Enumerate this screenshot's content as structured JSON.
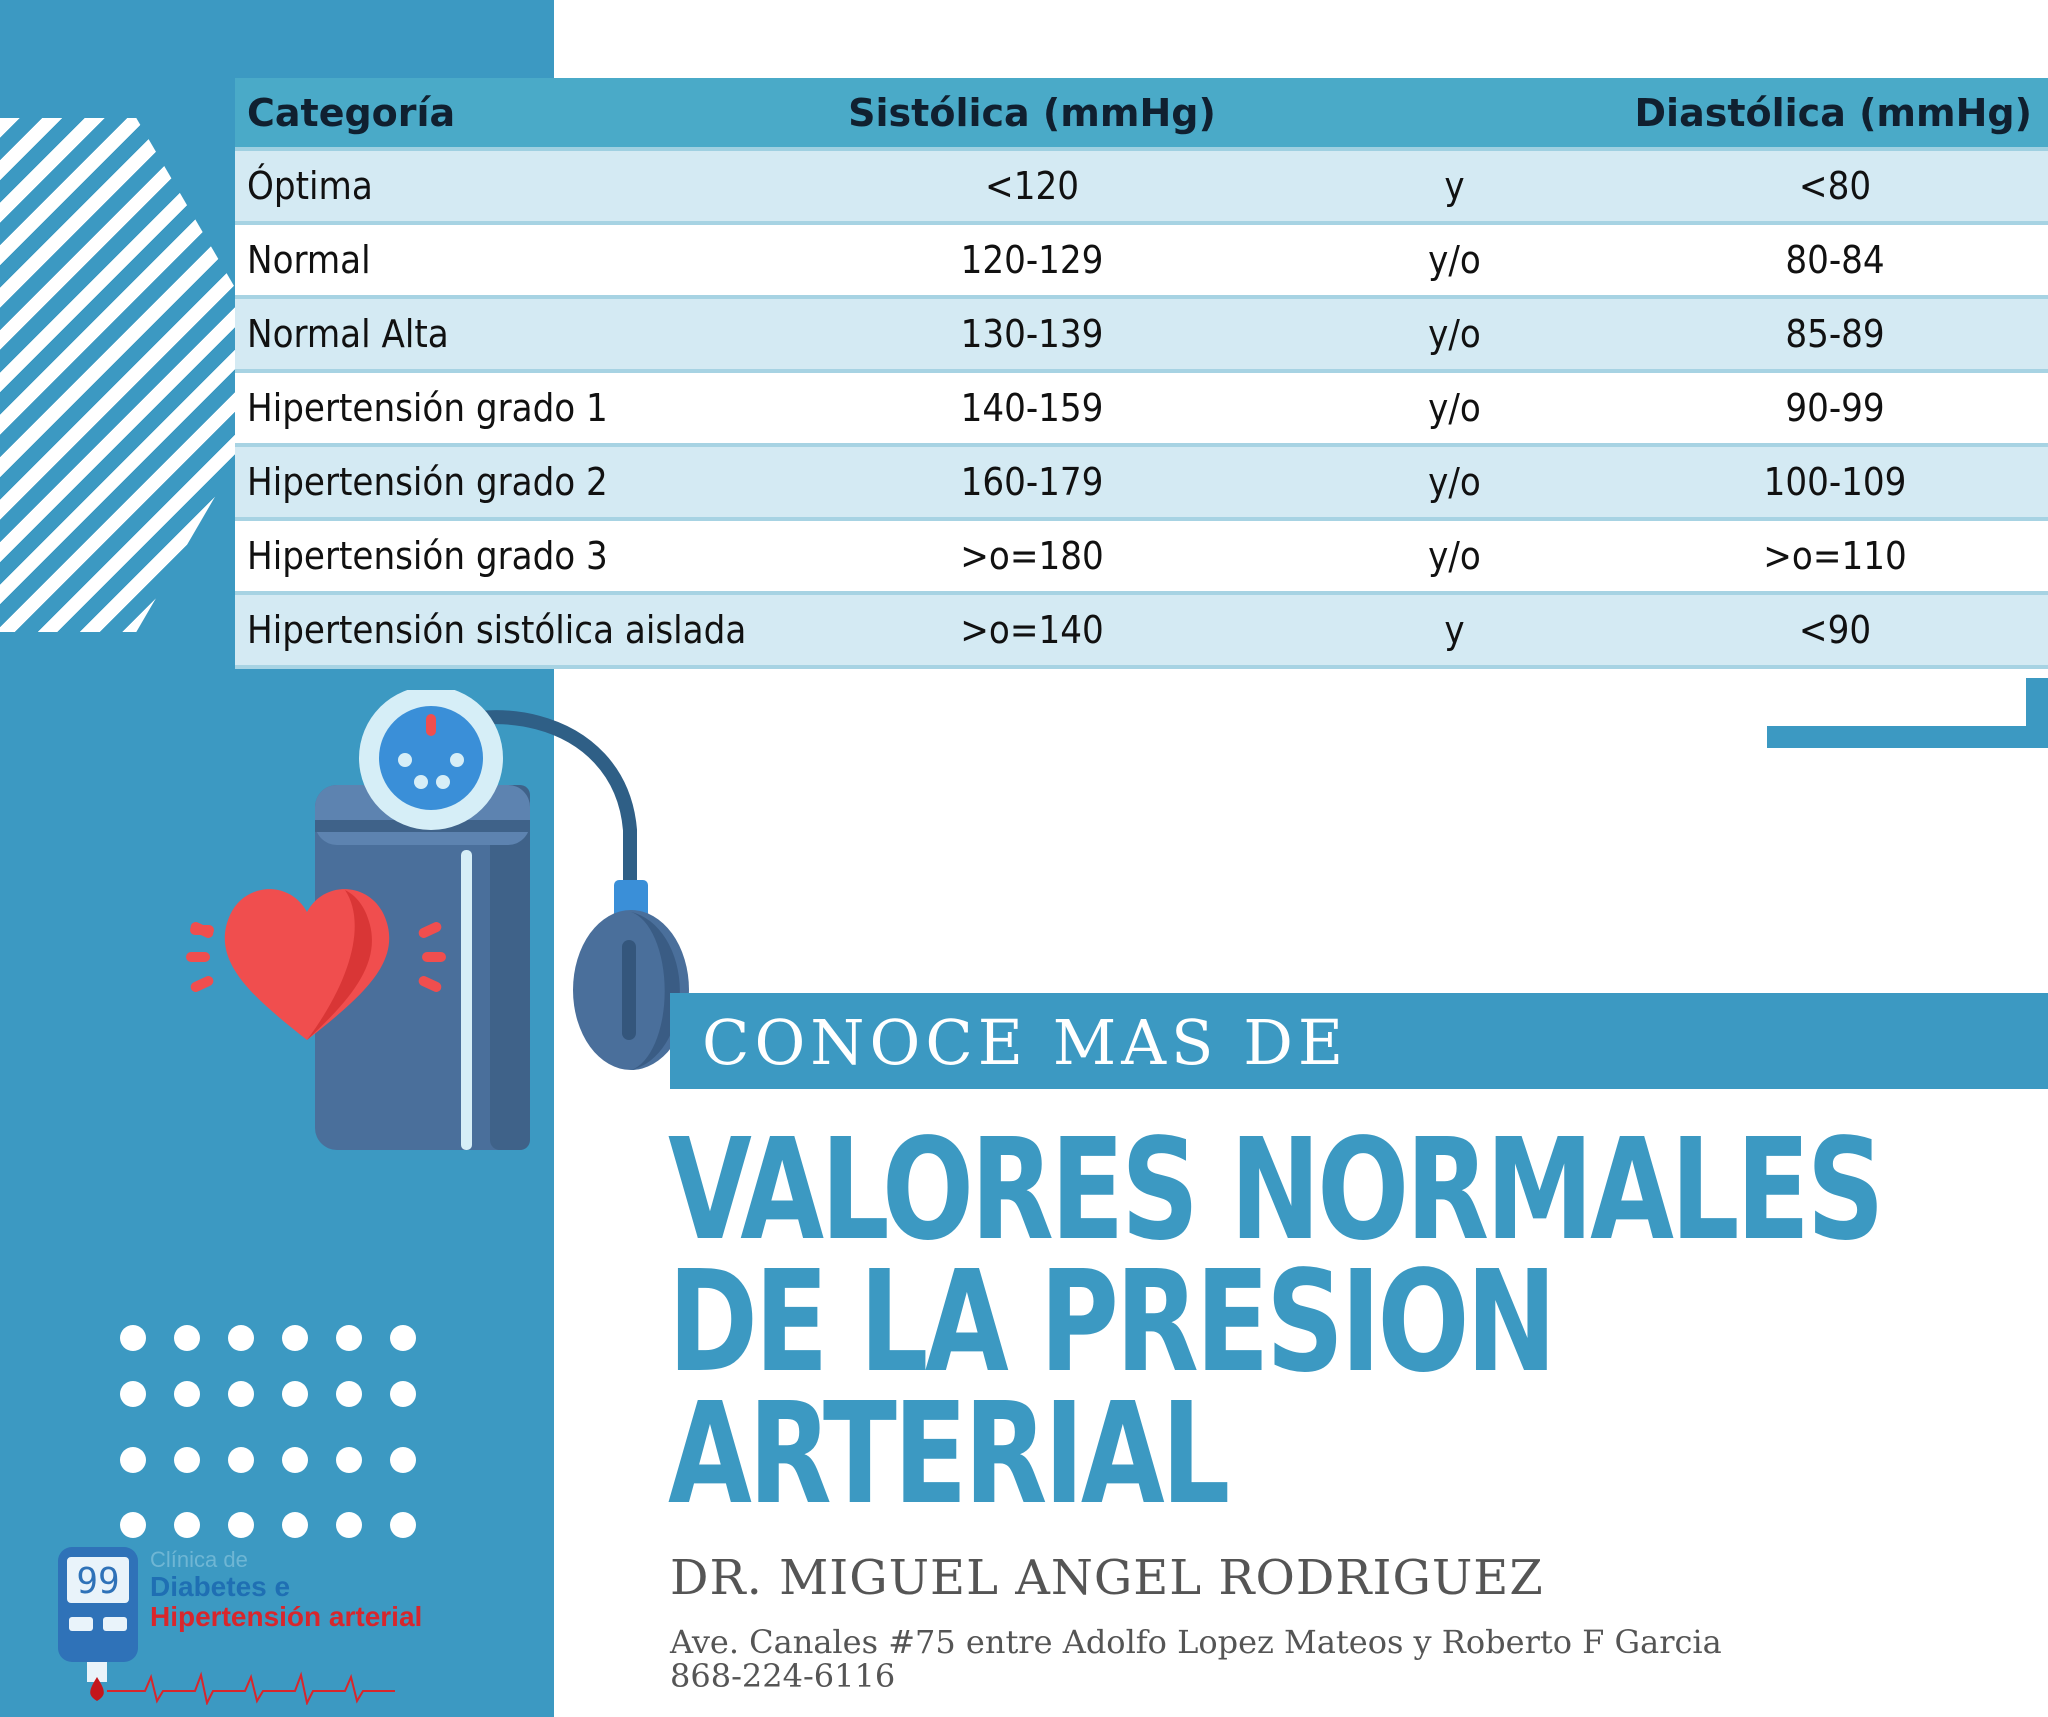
{
  "table": {
    "headers": [
      "Categoría",
      "Sistólica (mmHg)",
      "",
      "Diastólica (mmHg)"
    ],
    "rows": [
      [
        "Óptima",
        "<120",
        "y",
        "<80"
      ],
      [
        "Normal",
        "120-129",
        "y/o",
        "80-84"
      ],
      [
        "Normal Alta",
        "130-139",
        "y/o",
        "85-89"
      ],
      [
        "Hipertensión grado 1",
        "140-159",
        "y/o",
        "90-99"
      ],
      [
        "Hipertensión grado 2",
        "160-179",
        "y/o",
        "100-109"
      ],
      [
        "Hipertensión grado 3",
        ">o=180",
        "y/o",
        ">o=110"
      ],
      [
        "Hipertensión sistólica aislada",
        ">o=140",
        "y",
        "<90"
      ]
    ]
  },
  "banner": "CONOCE MAS DE",
  "title": [
    "VALORES NORMALES",
    "DE LA PRESION",
    "ARTERIAL"
  ],
  "doctor": "DR. MIGUEL ANGEL RODRIGUEZ",
  "address": "Ave. Canales #75 entre Adolfo Lopez Mateos y Roberto F Garcia",
  "phone": "868-224-6116",
  "logo": {
    "small": "Clínica de",
    "line1": "Diabetes e",
    "line2": "Hipertensión arterial",
    "meter_digits": "99"
  },
  "colors": {
    "accent": "#3c99c2",
    "header": "#4aaac8",
    "row_alt": "#d4eaf3",
    "heart": "#f04e4e"
  },
  "icons": [
    "blood-pressure-monitor-icon",
    "heart-icon",
    "glucometer-icon"
  ]
}
